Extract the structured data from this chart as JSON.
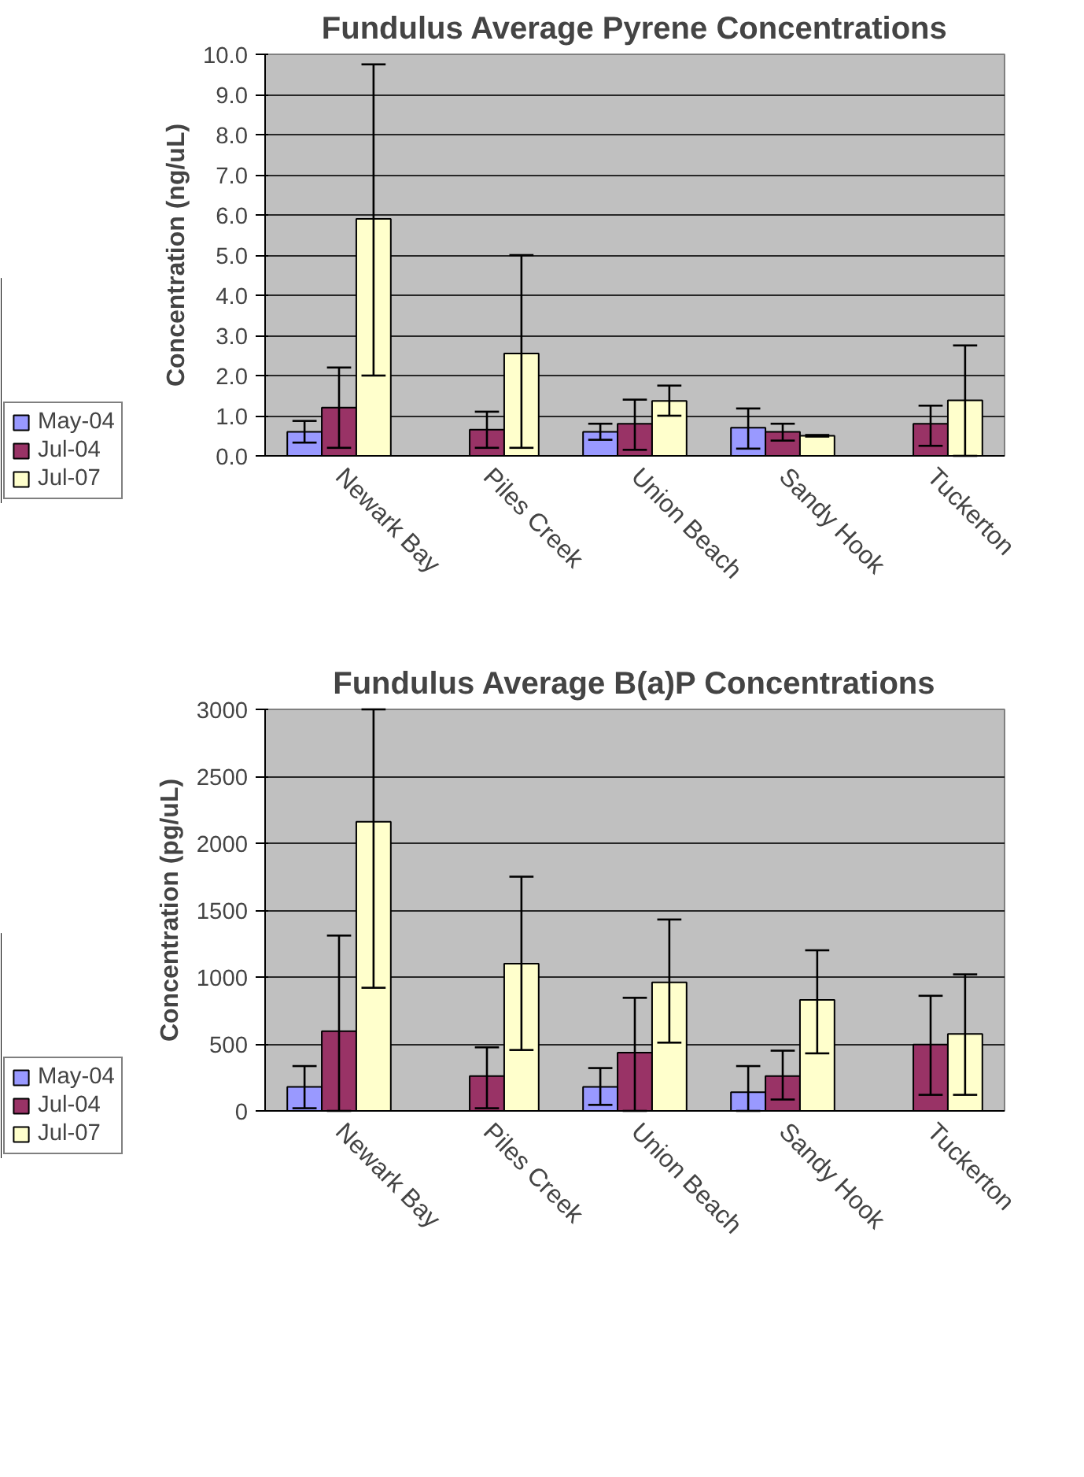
{
  "chart_data": [
    {
      "type": "bar",
      "title": "Fundulus Average Pyrene Concentrations",
      "ylabel": "Concentration (ng/uL)",
      "categories": [
        "Newark Bay",
        "Piles Creek",
        "Union Beach",
        "Sandy Hook",
        "Tuckerton"
      ],
      "ylim": [
        0,
        10
      ],
      "yticks": [
        {
          "value": 0,
          "label": "0.0"
        },
        {
          "value": 1,
          "label": "1.0"
        },
        {
          "value": 2,
          "label": "2.0"
        },
        {
          "value": 3,
          "label": "3.0"
        },
        {
          "value": 4,
          "label": "4.0"
        },
        {
          "value": 5,
          "label": "5.0"
        },
        {
          "value": 6,
          "label": "6.0"
        },
        {
          "value": 7,
          "label": "7.0"
        },
        {
          "value": 8,
          "label": "8.0"
        },
        {
          "value": 9,
          "label": "9.0"
        },
        {
          "value": 10,
          "label": "10.0"
        }
      ],
      "grid": "y",
      "legend": "bottom left",
      "series": [
        {
          "name": "May-04",
          "color": "#9999ff",
          "values": [
            0.6,
            null,
            0.6,
            0.7,
            null
          ],
          "errors": [
            [
              0.33,
              0.87
            ],
            null,
            [
              0.4,
              0.8
            ],
            [
              0.18,
              1.18
            ],
            null
          ]
        },
        {
          "name": "Jul-04",
          "color": "#993366",
          "values": [
            1.2,
            0.65,
            0.8,
            0.6,
            0.8
          ],
          "errors": [
            [
              0.2,
              2.2
            ],
            [
              0.2,
              1.1
            ],
            [
              0.15,
              1.4
            ],
            [
              0.38,
              0.8
            ],
            [
              0.25,
              1.25
            ]
          ]
        },
        {
          "name": "Jul-07",
          "color": "#ffffcc",
          "values": [
            5.9,
            2.55,
            1.37,
            0.5,
            1.38
          ],
          "errors": [
            [
              2.0,
              9.75
            ],
            [
              0.2,
              5.0
            ],
            [
              1.0,
              1.75
            ],
            [
              0.48,
              0.52
            ],
            [
              0.0,
              2.75
            ]
          ]
        }
      ]
    },
    {
      "type": "bar",
      "title": "Fundulus Average B(a)P Concentrations",
      "ylabel": "Concentration (pg/uL)",
      "categories": [
        "Newark Bay",
        "Piles Creek",
        "Union Beach",
        "Sandy Hook",
        "Tuckerton"
      ],
      "ylim": [
        0,
        3000
      ],
      "yticks": [
        0,
        500,
        1000,
        1500,
        2000,
        2500,
        3000
      ],
      "grid": "y",
      "legend": "bottom left",
      "series": [
        {
          "name": "May-04",
          "color": "#9999ff",
          "values": [
            180,
            null,
            180,
            140,
            null
          ],
          "errors": [
            [
              20,
              335
            ],
            null,
            [
              45,
              320
            ],
            [
              0,
              335
            ],
            null
          ]
        },
        {
          "name": "Jul-04",
          "color": "#993366",
          "values": [
            595,
            260,
            435,
            260,
            495
          ],
          "errors": [
            [
              0,
              1310
            ],
            [
              20,
              475
            ],
            [
              0,
              845
            ],
            [
              85,
              450
            ],
            [
              120,
              860
            ]
          ]
        },
        {
          "name": "Jul-07",
          "color": "#ffffcc",
          "values": [
            2160,
            1100,
            960,
            830,
            575
          ],
          "errors": [
            [
              920,
              3000
            ],
            [
              455,
              1750
            ],
            [
              510,
              1430
            ],
            [
              430,
              1200
            ],
            [
              120,
              1020
            ]
          ]
        }
      ]
    }
  ]
}
